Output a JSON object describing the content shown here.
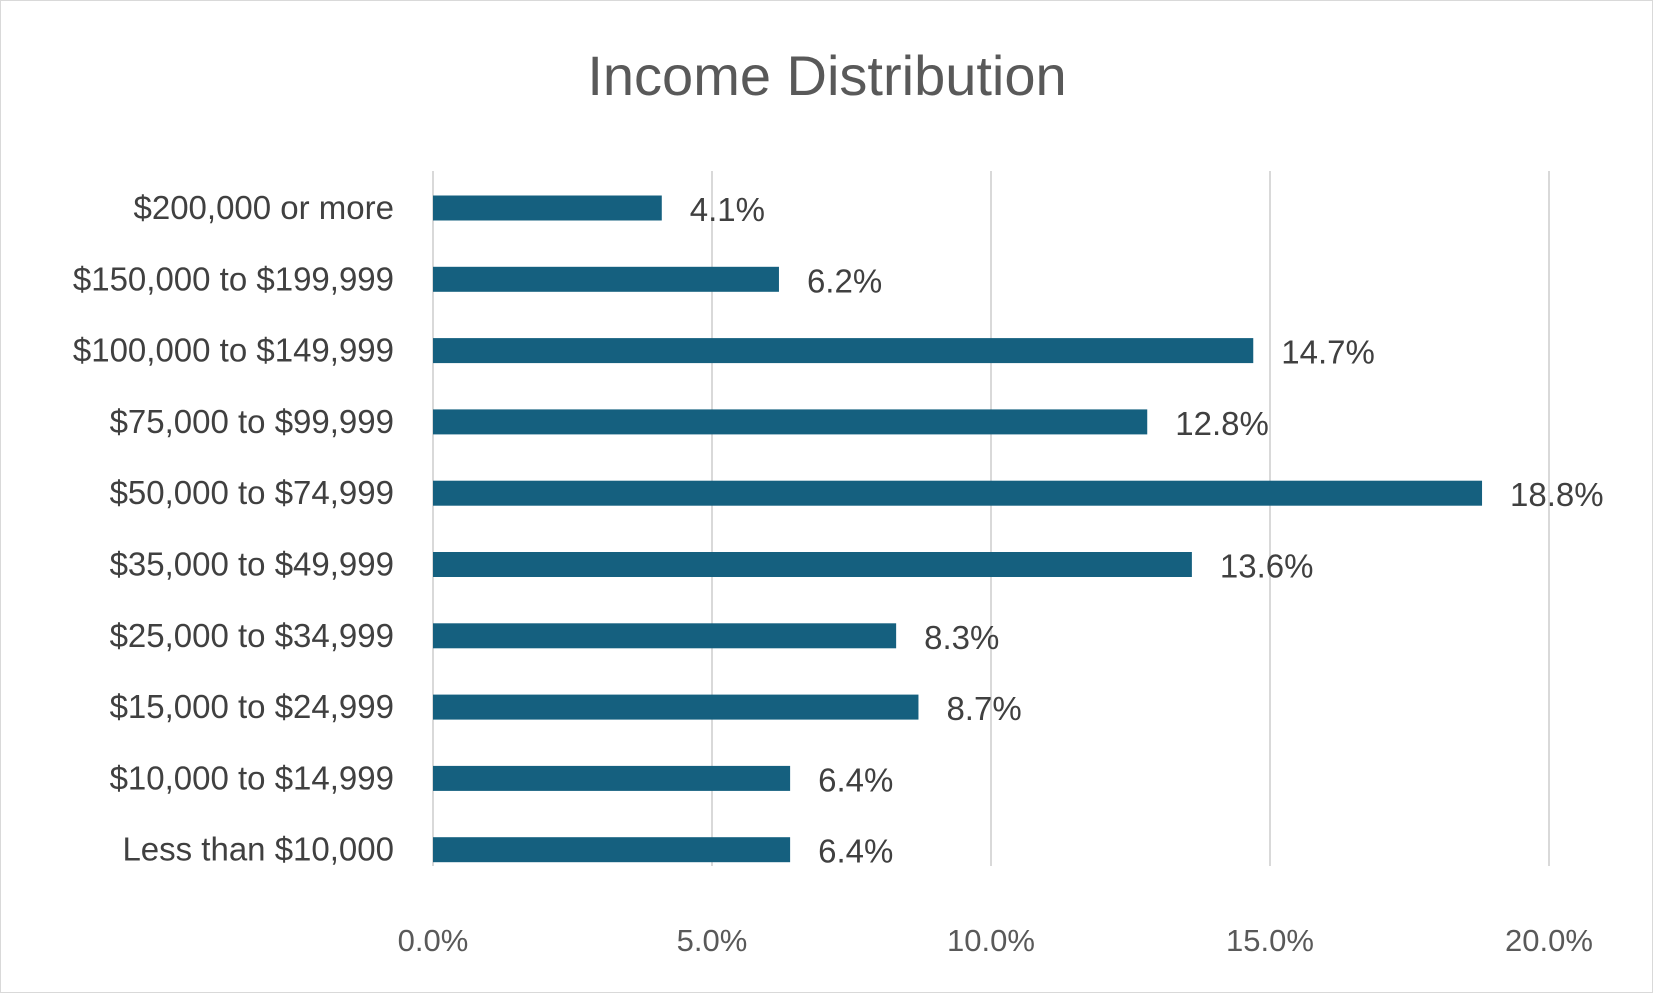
{
  "chart_data": {
    "type": "bar",
    "orientation": "horizontal",
    "title": "Income Distribution",
    "xlabel": "",
    "ylabel": "",
    "categories": [
      "$200,000 or more",
      "$150,000 to $199,999",
      "$100,000 to $149,999",
      "$75,000 to $99,999",
      "$50,000 to $74,999",
      "$35,000 to $49,999",
      "$25,000 to $34,999",
      "$15,000 to $24,999",
      "$10,000 to $14,999",
      "Less than $10,000"
    ],
    "values": [
      4.1,
      6.2,
      14.7,
      12.8,
      18.8,
      13.6,
      8.3,
      8.7,
      6.4,
      6.4
    ],
    "data_labels": [
      "4.1%",
      "6.2%",
      "14.7%",
      "12.8%",
      "18.8%",
      "13.6%",
      "8.3%",
      "8.7%",
      "6.4%",
      "6.4%"
    ],
    "xlim": [
      0,
      20
    ],
    "xticks": [
      0,
      5,
      10,
      15,
      20
    ],
    "xtick_labels": [
      "0.0%",
      "5.0%",
      "10.0%",
      "15.0%",
      "20.0%"
    ],
    "grid": "vertical",
    "legend": "none",
    "bar_color": "#15607f",
    "grid_color": "#d9d9d9"
  }
}
